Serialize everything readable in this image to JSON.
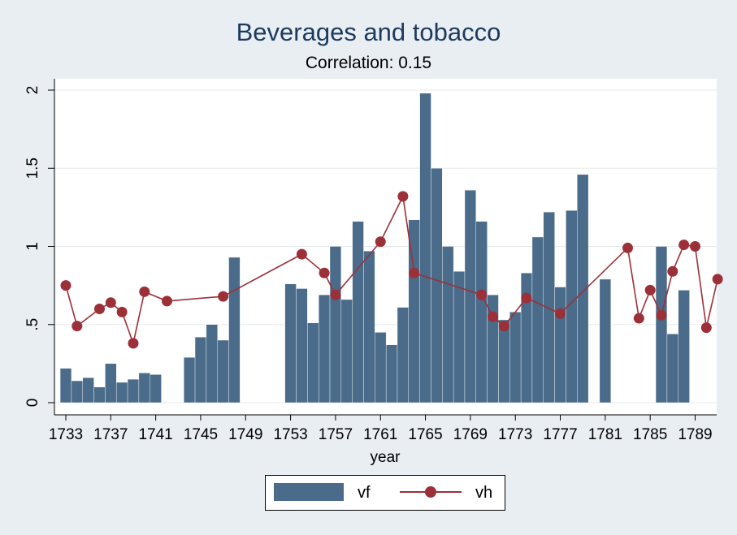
{
  "chart_data": {
    "type": "bar+line",
    "title": "Beverages and tobacco",
    "subtitle": "Correlation: 0.15",
    "xlabel": "year",
    "ylabel": "",
    "xlim": [
      1732,
      1790
    ],
    "ylim": [
      0,
      2
    ],
    "x_ticks": [
      1733,
      1737,
      1741,
      1745,
      1749,
      1753,
      1757,
      1761,
      1765,
      1769,
      1773,
      1777,
      1781,
      1785,
      1789
    ],
    "y_ticks": [
      0,
      0.5,
      1,
      1.5,
      2
    ],
    "y_tick_labels": [
      "0",
      ".5",
      "1",
      "1.5",
      "2"
    ],
    "grid": true,
    "legend_position": "bottom-center",
    "series": [
      {
        "name": "vf",
        "type": "bar",
        "color": "#4a6b8a",
        "points": [
          [
            1733,
            0.22
          ],
          [
            1734,
            0.14
          ],
          [
            1735,
            0.16
          ],
          [
            1736,
            0.1
          ],
          [
            1737,
            0.25
          ],
          [
            1738,
            0.13
          ],
          [
            1739,
            0.15
          ],
          [
            1740,
            0.19
          ],
          [
            1741,
            0.18
          ],
          [
            1744,
            0.29
          ],
          [
            1745,
            0.42
          ],
          [
            1746,
            0.5
          ],
          [
            1747,
            0.4
          ],
          [
            1748,
            0.93
          ],
          [
            1753,
            0.76
          ],
          [
            1754,
            0.73
          ],
          [
            1755,
            0.51
          ],
          [
            1756,
            0.69
          ],
          [
            1757,
            1.0
          ],
          [
            1758,
            0.66
          ],
          [
            1759,
            1.16
          ],
          [
            1760,
            0.97
          ],
          [
            1761,
            0.45
          ],
          [
            1762,
            0.37
          ],
          [
            1763,
            0.61
          ],
          [
            1764,
            1.17
          ],
          [
            1765,
            1.98
          ],
          [
            1766,
            1.5
          ],
          [
            1767,
            1.0
          ],
          [
            1768,
            0.84
          ],
          [
            1769,
            1.36
          ],
          [
            1770,
            1.16
          ],
          [
            1771,
            0.69
          ],
          [
            1772,
            0.53
          ],
          [
            1773,
            0.58
          ],
          [
            1774,
            0.83
          ],
          [
            1775,
            1.06
          ],
          [
            1776,
            1.22
          ],
          [
            1777,
            0.74
          ],
          [
            1778,
            1.23
          ],
          [
            1779,
            1.46
          ],
          [
            1781,
            0.79
          ],
          [
            1786,
            1.0
          ],
          [
            1787,
            0.44
          ],
          [
            1788,
            0.72
          ]
        ]
      },
      {
        "name": "vh",
        "type": "line",
        "color": "#9c3038",
        "points": [
          [
            1733,
            0.75
          ],
          [
            1734,
            0.49
          ],
          [
            1736,
            0.6
          ],
          [
            1737,
            0.64
          ],
          [
            1738,
            0.58
          ],
          [
            1739,
            0.38
          ],
          [
            1740,
            0.71
          ],
          [
            1742,
            0.65
          ],
          [
            1747,
            0.68
          ],
          [
            1754,
            0.95
          ],
          [
            1756,
            0.83
          ],
          [
            1757,
            0.69
          ],
          [
            1761,
            1.03
          ],
          [
            1763,
            1.32
          ],
          [
            1764,
            0.83
          ],
          [
            1770,
            0.69
          ],
          [
            1771,
            0.55
          ],
          [
            1772,
            0.49
          ],
          [
            1774,
            0.67
          ],
          [
            1777,
            0.57
          ],
          [
            1783,
            0.99
          ],
          [
            1784,
            0.54
          ],
          [
            1785,
            0.72
          ],
          [
            1786,
            0.56
          ],
          [
            1787,
            0.84
          ],
          [
            1788,
            1.01
          ],
          [
            1789,
            1.0
          ],
          [
            1790,
            0.48
          ],
          [
            1791,
            0.79
          ]
        ]
      }
    ]
  }
}
